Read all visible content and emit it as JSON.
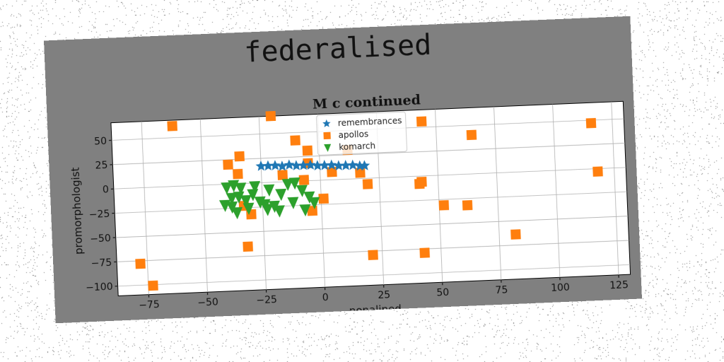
{
  "figure": {
    "suptitle": "federalised",
    "background": "#808080"
  },
  "chart_data": {
    "type": "scatter",
    "title": "M c continued",
    "xlabel": "nonalined",
    "ylabel": "promorphologist",
    "xlim": [
      -88,
      130
    ],
    "ylim": [
      -110,
      68
    ],
    "xticks": [
      -75,
      -50,
      -25,
      0,
      25,
      50,
      75,
      100,
      125
    ],
    "yticks": [
      50,
      25,
      0,
      -25,
      -50,
      -75,
      -100
    ],
    "xtick_labels": [
      "−75",
      "−50",
      "−25",
      "0",
      "25",
      "50",
      "75",
      "100",
      "125"
    ],
    "ytick_labels": [
      "50",
      "25",
      "0",
      "−25",
      "−50",
      "−75",
      "−100"
    ],
    "grid": true,
    "legend_position": "top-center",
    "series": [
      {
        "name": "remembrances",
        "color": "#1f77b4",
        "marker": "star",
        "points": [
          [
            -25,
            17
          ],
          [
            -22,
            17
          ],
          [
            -19,
            17
          ],
          [
            -16,
            16
          ],
          [
            -13,
            17
          ],
          [
            -10,
            16
          ],
          [
            -7,
            16
          ],
          [
            -4,
            16
          ],
          [
            -1,
            15
          ],
          [
            2,
            15
          ],
          [
            5,
            15
          ],
          [
            8,
            14
          ],
          [
            11,
            14
          ],
          [
            14,
            14
          ],
          [
            17,
            13
          ],
          [
            19,
            13
          ]
        ]
      },
      {
        "name": "apollos",
        "color": "#ff7f0e",
        "marker": "square",
        "points": [
          [
            -62,
            62
          ],
          [
            -20,
            68
          ],
          [
            -10,
            42
          ],
          [
            -34,
            28
          ],
          [
            -5,
            31
          ],
          [
            -39,
            20
          ],
          [
            12,
            30
          ],
          [
            -35,
            10
          ],
          [
            -5,
            18
          ],
          [
            -16,
            7
          ],
          [
            5,
            8
          ],
          [
            17,
            6
          ],
          [
            -7,
            1
          ],
          [
            20,
            -6
          ],
          [
            44,
            56
          ],
          [
            65,
            40
          ],
          [
            116,
            47
          ],
          [
            118,
            -3
          ],
          [
            42,
            -8
          ],
          [
            -33,
            -23
          ],
          [
            1,
            -19
          ],
          [
            -30,
            -32
          ],
          [
            -4,
            -31
          ],
          [
            52,
            -31
          ],
          [
            62,
            -32
          ],
          [
            43,
            -6
          ],
          [
            -32,
            -65
          ],
          [
            82,
            -64
          ],
          [
            -78,
            -78
          ],
          [
            21,
            -79
          ],
          [
            43,
            -79
          ],
          [
            -73,
            -101
          ]
        ]
      },
      {
        "name": "komarch",
        "color": "#2ca02c",
        "marker": "triangle-down",
        "points": [
          [
            -40,
            -4
          ],
          [
            -37,
            -2
          ],
          [
            -34,
            -5
          ],
          [
            -38,
            -15
          ],
          [
            -41,
            -22
          ],
          [
            -35,
            -14
          ],
          [
            -32,
            -18
          ],
          [
            -29,
            -12
          ],
          [
            -26,
            -20
          ],
          [
            -24,
            -23
          ],
          [
            -36,
            -30
          ],
          [
            -31,
            -26
          ],
          [
            -23,
            -28
          ],
          [
            -20,
            -25
          ],
          [
            -17,
            -13
          ],
          [
            -14,
            -3
          ],
          [
            -11,
            -2
          ],
          [
            -8,
            -10
          ],
          [
            -5,
            -17
          ],
          [
            -3,
            -23
          ],
          [
            -7,
            -30
          ],
          [
            -38,
            -24
          ],
          [
            -28,
            -4
          ],
          [
            -22,
            -8
          ],
          [
            -18,
            -30
          ],
          [
            -12,
            -22
          ]
        ]
      }
    ]
  }
}
